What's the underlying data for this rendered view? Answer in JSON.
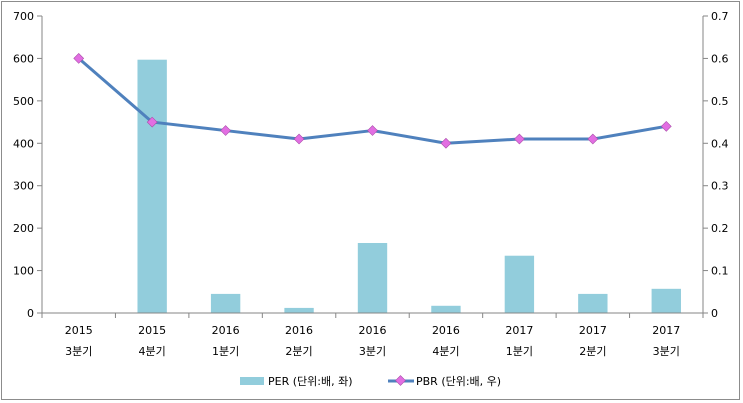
{
  "chart_data": {
    "type": "bar",
    "categories": [
      [
        "2015",
        "3분기"
      ],
      [
        "2015",
        "4분기"
      ],
      [
        "2016",
        "1분기"
      ],
      [
        "2016",
        "2분기"
      ],
      [
        "2016",
        "3분기"
      ],
      [
        "2016",
        "4분기"
      ],
      [
        "2017",
        "1분기"
      ],
      [
        "2017",
        "2분기"
      ],
      [
        "2017",
        "3분기"
      ]
    ],
    "series": [
      {
        "name": "PER (단위:배, 좌)",
        "type": "bar",
        "axis": "left",
        "color": "#92cddc",
        "values": [
          null,
          597,
          45,
          12,
          165,
          17,
          135,
          45,
          57
        ]
      },
      {
        "name": "PBR (단위:배, 우)",
        "type": "line",
        "axis": "right",
        "color": "#4f81bd",
        "marker_color": "#e26ee2",
        "values": [
          0.6,
          0.45,
          0.43,
          0.41,
          0.43,
          0.4,
          0.41,
          0.41,
          0.44
        ]
      }
    ],
    "y_left": {
      "min": 0,
      "max": 700,
      "ticks": [
        "0",
        "100",
        "200",
        "300",
        "400",
        "500",
        "600",
        "700"
      ]
    },
    "y_right": {
      "min": 0,
      "max": 0.7,
      "ticks": [
        "0",
        "0.1",
        "0.2",
        "0.3",
        "0.4",
        "0.5",
        "0.6",
        "0.7"
      ]
    },
    "grid": false,
    "legend_position": "bottom"
  }
}
